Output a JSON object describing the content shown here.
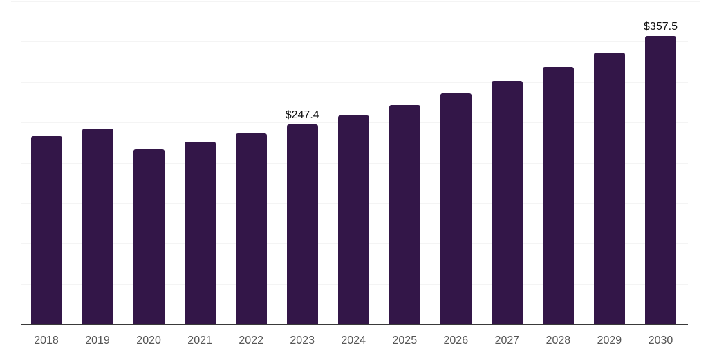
{
  "chart_data": {
    "type": "bar",
    "title": "",
    "xlabel": "",
    "ylabel": "",
    "categories": [
      "2018",
      "2019",
      "2020",
      "2021",
      "2022",
      "2023",
      "2024",
      "2025",
      "2026",
      "2027",
      "2028",
      "2029",
      "2030"
    ],
    "values": [
      233.0,
      242.7,
      216.8,
      226.2,
      236.6,
      247.4,
      258.6,
      271.6,
      285.8,
      301.2,
      318.9,
      337.0,
      357.5
    ],
    "data_labels": {
      "2023": "$247.4",
      "2030": "$357.5"
    },
    "ylim": [
      0,
      400
    ],
    "grid_step": 50,
    "grid": true,
    "legend": false,
    "y_axis_tick_labels_visible": false,
    "colors": {
      "bar": "#331648",
      "gridline": "#f4f4f4",
      "axis": "#3a3a3a",
      "tick_label": "#555555",
      "value_label": "#111111"
    }
  }
}
